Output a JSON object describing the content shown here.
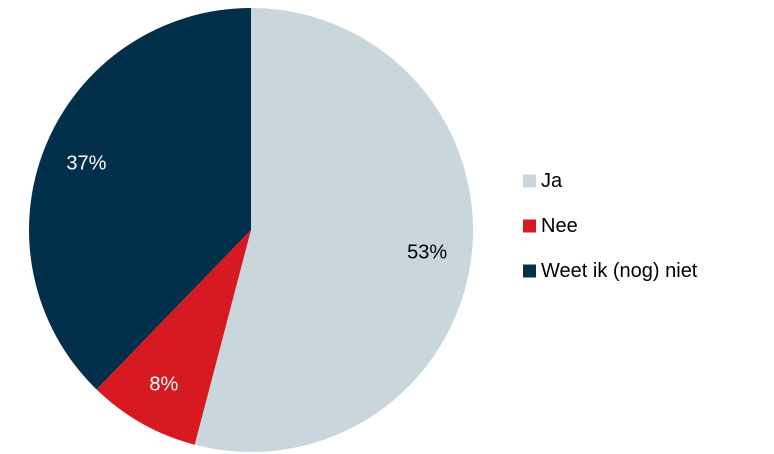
{
  "chart_data": {
    "type": "pie",
    "title": "",
    "categories": [
      "Ja",
      "Nee",
      "Weet ik (nog) niet"
    ],
    "values": [
      53,
      8,
      37
    ],
    "labels": [
      "53%",
      "8%",
      "37%"
    ],
    "colors": [
      "#c9d6dc",
      "#d71a21",
      "#02304a"
    ],
    "label_colors": [
      "#000000",
      "#ffffff",
      "#ffffff"
    ],
    "start_angle_deg": 0,
    "direction": "clockwise",
    "legend": {
      "position": "right",
      "items": [
        "Ja",
        "Nee",
        "Weet ik (nog) niet"
      ]
    }
  }
}
